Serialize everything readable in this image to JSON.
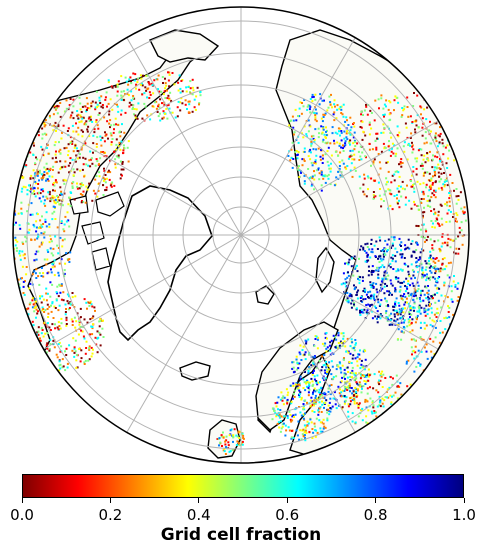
{
  "map": {
    "projection": "north-polar-stereographic",
    "graticule": "grey",
    "land_outline": "black",
    "ocean": "white"
  },
  "colorbar": {
    "title": "Grid cell fraction",
    "colormap": "jet_r",
    "stops": [
      "#7f0000",
      "#ff0000",
      "#ff7f00",
      "#ffff00",
      "#7fff7f",
      "#00ffff",
      "#007fff",
      "#0000ff",
      "#00007f"
    ],
    "ticks": [
      {
        "value": 0.0,
        "label": "0.0"
      },
      {
        "value": 0.2,
        "label": "0.2"
      },
      {
        "value": 0.4,
        "label": "0.4"
      },
      {
        "value": 0.6,
        "label": "0.6"
      },
      {
        "value": 0.8,
        "label": "0.8"
      },
      {
        "value": 1.0,
        "label": "1.0"
      }
    ],
    "range": [
      0.0,
      1.0
    ]
  }
}
